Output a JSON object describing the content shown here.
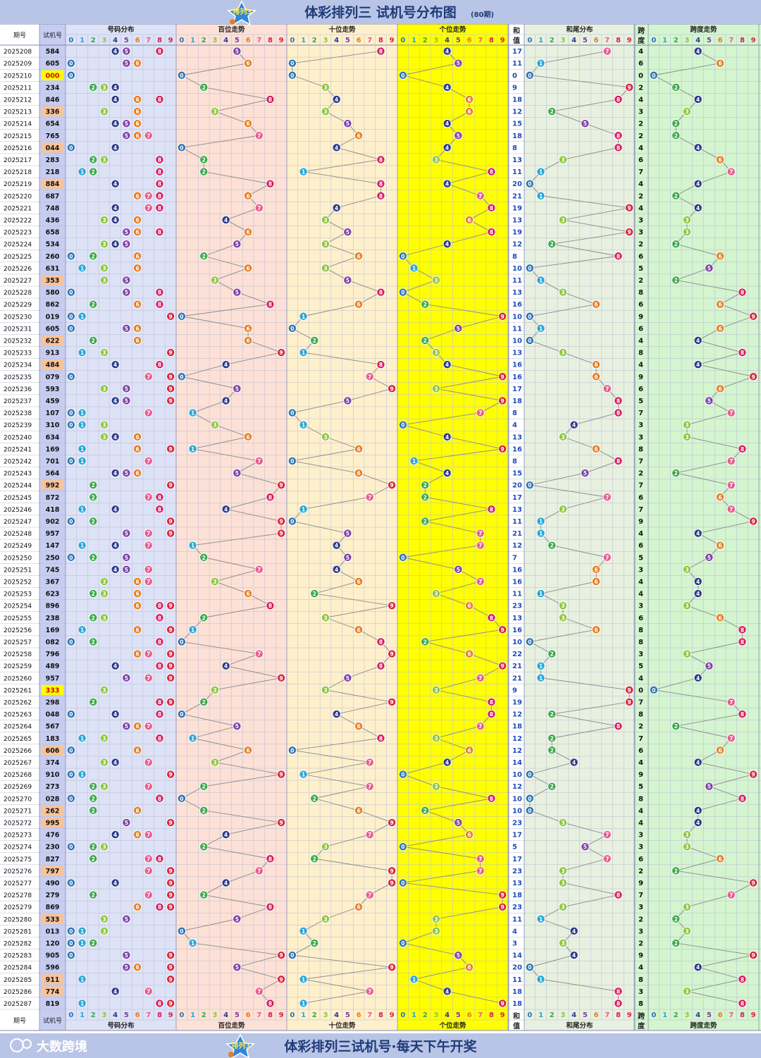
{
  "header": {
    "logo_text": "排列3",
    "title": "体彩排列三 试机号分布图",
    "period_count": "(80期)",
    "footer_brand": "大数跨境",
    "footer_slogan": "体彩排列三试机号·每天下午开奖"
  },
  "colors": {
    "header_bg": "#b9c5e6",
    "col_period_bg": "#ffffff",
    "col_number_bg": "#c7cdf0",
    "zone_distribution_bg": "#dde2f6",
    "zone_hundreds_bg": "#fde1d6",
    "zone_tens_bg": "#fff0cc",
    "zone_units_bg": "#ffff00",
    "zone_sum_bg": "#ffffff",
    "zone_sum_tail_bg": "#e8f1e0",
    "zone_span_bg": "#d4f5cf",
    "pair_highlight": "#f7c39a",
    "triple_highlight": "#ffff00",
    "digit_colors": [
      "#2e74b5",
      "#2aa7d8",
      "#3aa84b",
      "#8ec63f",
      "#2e3a8c",
      "#7e3fa8",
      "#e67e22",
      "#e85c8f",
      "#d81b60",
      "#d7263d"
    ]
  },
  "columns": {
    "period": "期号",
    "number": "试机号",
    "distribution": "号码分布",
    "hundreds": "百位走势",
    "tens": "十位走势",
    "units": "个位走势",
    "sum": "和值",
    "sum_tail": "和尾分布",
    "span": "跨度",
    "span_trend": "跨度走势",
    "digits": [
      "0",
      "1",
      "2",
      "3",
      "4",
      "5",
      "6",
      "7",
      "8",
      "9"
    ]
  },
  "chart_data": {
    "type": "table",
    "rows": [
      {
        "period": "2025208",
        "number": "584"
      },
      {
        "period": "2025209",
        "number": "605"
      },
      {
        "period": "2025210",
        "number": "000"
      },
      {
        "period": "2025211",
        "number": "234"
      },
      {
        "period": "2025212",
        "number": "846"
      },
      {
        "period": "2025213",
        "number": "336"
      },
      {
        "period": "2025214",
        "number": "654"
      },
      {
        "period": "2025215",
        "number": "765"
      },
      {
        "period": "2025216",
        "number": "044"
      },
      {
        "period": "2025217",
        "number": "283"
      },
      {
        "period": "2025218",
        "number": "218"
      },
      {
        "period": "2025219",
        "number": "884"
      },
      {
        "period": "2025220",
        "number": "687"
      },
      {
        "period": "2025221",
        "number": "748"
      },
      {
        "period": "2025222",
        "number": "436"
      },
      {
        "period": "2025223",
        "number": "658"
      },
      {
        "period": "2025224",
        "number": "534"
      },
      {
        "period": "2025225",
        "number": "260"
      },
      {
        "period": "2025226",
        "number": "631"
      },
      {
        "period": "2025227",
        "number": "353"
      },
      {
        "period": "2025228",
        "number": "580"
      },
      {
        "period": "2025229",
        "number": "862"
      },
      {
        "period": "2025230",
        "number": "019"
      },
      {
        "period": "2025231",
        "number": "605"
      },
      {
        "period": "2025232",
        "number": "622"
      },
      {
        "period": "2025233",
        "number": "913"
      },
      {
        "period": "2025234",
        "number": "484"
      },
      {
        "period": "2025235",
        "number": "079"
      },
      {
        "period": "2025236",
        "number": "593"
      },
      {
        "period": "2025237",
        "number": "459"
      },
      {
        "period": "2025238",
        "number": "107"
      },
      {
        "period": "2025239",
        "number": "310"
      },
      {
        "period": "2025240",
        "number": "634"
      },
      {
        "period": "2025241",
        "number": "169"
      },
      {
        "period": "2025242",
        "number": "701"
      },
      {
        "period": "2025243",
        "number": "564"
      },
      {
        "period": "2025244",
        "number": "992"
      },
      {
        "period": "2025245",
        "number": "872"
      },
      {
        "period": "2025246",
        "number": "418"
      },
      {
        "period": "2025247",
        "number": "902"
      },
      {
        "period": "2025248",
        "number": "957"
      },
      {
        "period": "2025249",
        "number": "147"
      },
      {
        "period": "2025250",
        "number": "250"
      },
      {
        "period": "2025251",
        "number": "745"
      },
      {
        "period": "2025252",
        "number": "367"
      },
      {
        "period": "2025253",
        "number": "623"
      },
      {
        "period": "2025254",
        "number": "896"
      },
      {
        "period": "2025255",
        "number": "238"
      },
      {
        "period": "2025256",
        "number": "169"
      },
      {
        "period": "2025257",
        "number": "082"
      },
      {
        "period": "2025258",
        "number": "796"
      },
      {
        "period": "2025259",
        "number": "489"
      },
      {
        "period": "2025260",
        "number": "957"
      },
      {
        "period": "2025261",
        "number": "333"
      },
      {
        "period": "2025262",
        "number": "298"
      },
      {
        "period": "2025263",
        "number": "048"
      },
      {
        "period": "2025264",
        "number": "567"
      },
      {
        "period": "2025265",
        "number": "183"
      },
      {
        "period": "2025266",
        "number": "606"
      },
      {
        "period": "2025267",
        "number": "374"
      },
      {
        "period": "2025268",
        "number": "910"
      },
      {
        "period": "2025269",
        "number": "273"
      },
      {
        "period": "2025270",
        "number": "028"
      },
      {
        "period": "2025271",
        "number": "262"
      },
      {
        "period": "2025272",
        "number": "995"
      },
      {
        "period": "2025273",
        "number": "476"
      },
      {
        "period": "2025274",
        "number": "230"
      },
      {
        "period": "2025275",
        "number": "827"
      },
      {
        "period": "2025276",
        "number": "797"
      },
      {
        "period": "2025277",
        "number": "490"
      },
      {
        "period": "2025278",
        "number": "279"
      },
      {
        "period": "2025279",
        "number": "869"
      },
      {
        "period": "2025280",
        "number": "533"
      },
      {
        "period": "2025281",
        "number": "013"
      },
      {
        "period": "2025282",
        "number": "120"
      },
      {
        "period": "2025283",
        "number": "905"
      },
      {
        "period": "2025284",
        "number": "596"
      },
      {
        "period": "2025285",
        "number": "911"
      },
      {
        "period": "2025286",
        "number": "774"
      },
      {
        "period": "2025287",
        "number": "819"
      }
    ]
  }
}
